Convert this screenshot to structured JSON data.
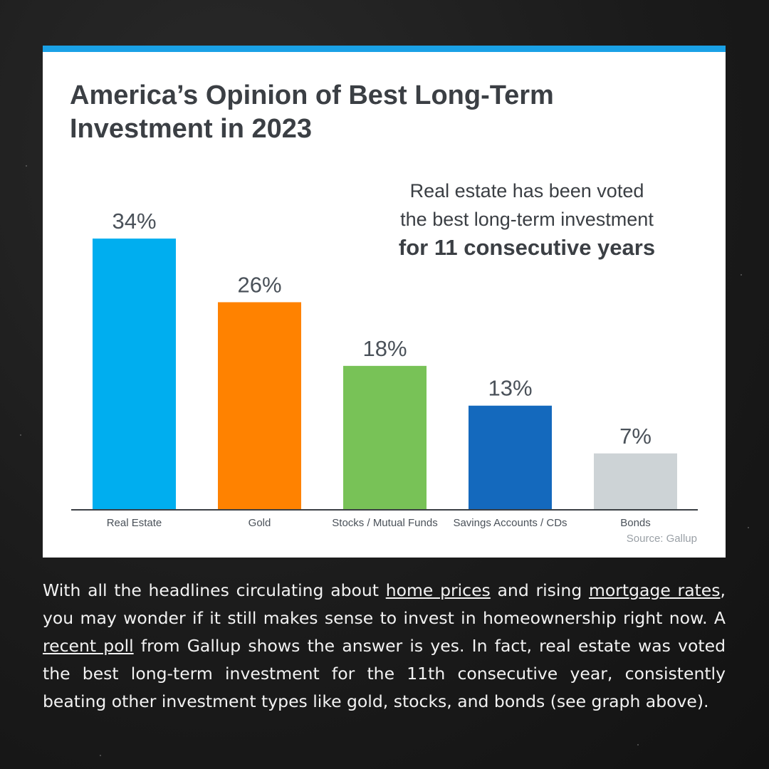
{
  "chart_data": {
    "type": "bar",
    "title": "America’s Opinion of Best Long-Term Investment in 2023",
    "categories": [
      "Real Estate",
      "Gold",
      "Stocks / Mutual Funds",
      "Savings Accounts / CDs",
      "Bonds"
    ],
    "values": [
      34,
      26,
      18,
      13,
      7
    ],
    "value_labels": [
      "34%",
      "26%",
      "18%",
      "13%",
      "7%"
    ],
    "colors": [
      "#00aeef",
      "#ff8200",
      "#78c257",
      "#1469bd",
      "#cdd3d6"
    ],
    "ylim": [
      0,
      40
    ],
    "grid": false,
    "legend": "none"
  },
  "callout": {
    "line1": "Real estate has been voted",
    "line2": "the best long-term investment",
    "line3": "for 11 consecutive years"
  },
  "source": "Source: Gallup",
  "body": {
    "t1": "With all the headlines circulating about ",
    "link1": "home prices",
    "t2": " and rising ",
    "link2": "mortgage rates",
    "t3": ", you may wonder if it still makes sense to invest in homeownership right now. A ",
    "link3": "recent poll",
    "t4": " from Gallup shows the answer is yes. In fact, real estate was voted the best long-term investment for the 11th consecutive year, consistently beating other investment types like gold, stocks, and bonds (see graph above)."
  },
  "colors": {
    "accent_bar": "#1aa1e6",
    "background": "#1b1b1b",
    "title_text": "#3b3f44"
  }
}
